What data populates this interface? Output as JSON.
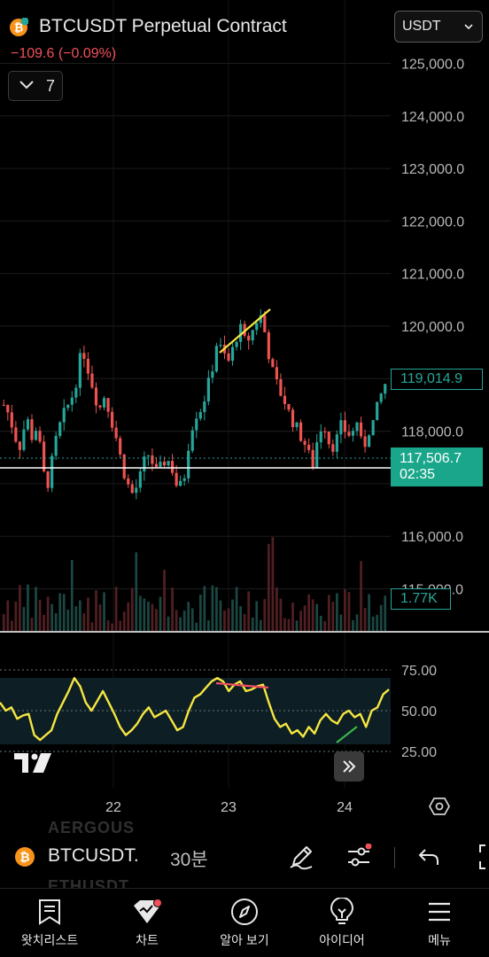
{
  "header": {
    "symbol_title": "BTCUSDT Perpetual Contract",
    "change_text": "−109.6 (−0.09%)",
    "indicator_count": "7",
    "currency": "USDT"
  },
  "price_axis": {
    "ticks": [
      "125,000.0",
      "124,000.0",
      "123,000.0",
      "122,000.0",
      "121,000.0",
      "120,000.0",
      "118,000.0",
      "116,000.0",
      "115,000.0"
    ],
    "last_price_label": "119,014.9",
    "current_price": "117,506.7",
    "countdown": "02:35",
    "volume_label": "1.77K"
  },
  "rsi_axis": {
    "ticks": [
      "75.00",
      "50.00",
      "25.00"
    ]
  },
  "time_axis": {
    "ticks": [
      "22",
      "23",
      "24"
    ]
  },
  "ghost_list": [
    "AERGOUS",
    "ETHUSDT"
  ],
  "toolbar": {
    "symbol": "BTCUSDT.",
    "interval": "30분",
    "icons": [
      "pencil-icon",
      "sliders-icon",
      "undo-icon",
      "fullscreen-icon"
    ]
  },
  "nav": {
    "items": [
      {
        "label": "왓치리스트",
        "icon": "watchlist-icon"
      },
      {
        "label": "차트",
        "icon": "chart-icon"
      },
      {
        "label": "알아 보기",
        "icon": "compass-icon"
      },
      {
        "label": "아이디어",
        "icon": "bulb-icon"
      },
      {
        "label": "메뉴",
        "icon": "menu-icon"
      }
    ]
  },
  "colors": {
    "up": "#26a69a",
    "down": "#ef5350",
    "rsi_line": "#f5e642",
    "trend_line": "#f5e642",
    "divergence_down": "#f05060",
    "divergence_up": "#3bb54a",
    "accent": "#1aa68a"
  },
  "chart_data": {
    "type": "candlestick",
    "title": "BTCUSDT Perpetual Contract",
    "interval": "30분",
    "x_ticks": [
      "22",
      "23",
      "24"
    ],
    "price_ylim": [
      114800,
      125500
    ],
    "last_price": 117506.7,
    "last_price_marker": 119014.9,
    "price_path": [
      118500,
      118300,
      117900,
      117700,
      118300,
      117900,
      118100,
      117200,
      117000,
      117700,
      118100,
      118400,
      118600,
      119000,
      119600,
      119200,
      118800,
      118400,
      118700,
      118300,
      117900,
      117400,
      117000,
      116800,
      117000,
      117400,
      117600,
      117200,
      117300,
      117500,
      117300,
      116900,
      117000,
      117800,
      118300,
      118400,
      118700,
      119100,
      119700,
      119500,
      119300,
      119600,
      120000,
      119700,
      119800,
      120100,
      120200,
      119600,
      119100,
      118800,
      118600,
      118300,
      118100,
      117900,
      117700,
      117300,
      117900,
      118200,
      117800,
      117700,
      118100,
      118000,
      117900,
      118200,
      117600,
      118000,
      118200,
      118600,
      118900
    ],
    "volume_ylim": [
      0,
      2000
    ],
    "rsi": {
      "ylim": [
        10,
        85
      ],
      "levels": [
        75,
        50,
        25
      ],
      "values": [
        55,
        50,
        52,
        45,
        47,
        48,
        35,
        32,
        35,
        38,
        48,
        55,
        62,
        70,
        65,
        55,
        50,
        56,
        62,
        55,
        48,
        40,
        35,
        38,
        42,
        48,
        52,
        46,
        48,
        50,
        44,
        38,
        40,
        50,
        58,
        60,
        64,
        68,
        70,
        68,
        62,
        66,
        68,
        62,
        63,
        65,
        66,
        55,
        45,
        40,
        42,
        36,
        38,
        34,
        40,
        36,
        44,
        48,
        44,
        42,
        48,
        50,
        46,
        48,
        40,
        50,
        52,
        60,
        63
      ]
    }
  }
}
